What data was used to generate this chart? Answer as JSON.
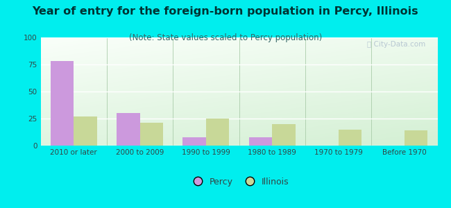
{
  "title": "Year of entry for the foreign-born population in Percy, Illinois",
  "subtitle": "(Note: State values scaled to Percy population)",
  "categories": [
    "2010 or later",
    "2000 to 2009",
    "1990 to 1999",
    "1980 to 1989",
    "1970 to 1979",
    "Before 1970"
  ],
  "percy_values": [
    78,
    30,
    8,
    8,
    0,
    0
  ],
  "illinois_values": [
    27,
    21,
    25,
    20,
    15,
    14
  ],
  "percy_color": "#cc99dd",
  "illinois_color": "#c8d898",
  "background_outer": "#00eeee",
  "ylim": [
    0,
    100
  ],
  "yticks": [
    0,
    25,
    50,
    75,
    100
  ],
  "bar_width": 0.35,
  "title_fontsize": 11.5,
  "subtitle_fontsize": 8.5,
  "tick_fontsize": 7.5,
  "legend_fontsize": 9,
  "title_color": "#003333",
  "subtitle_color": "#336666",
  "tick_color": "#334444"
}
